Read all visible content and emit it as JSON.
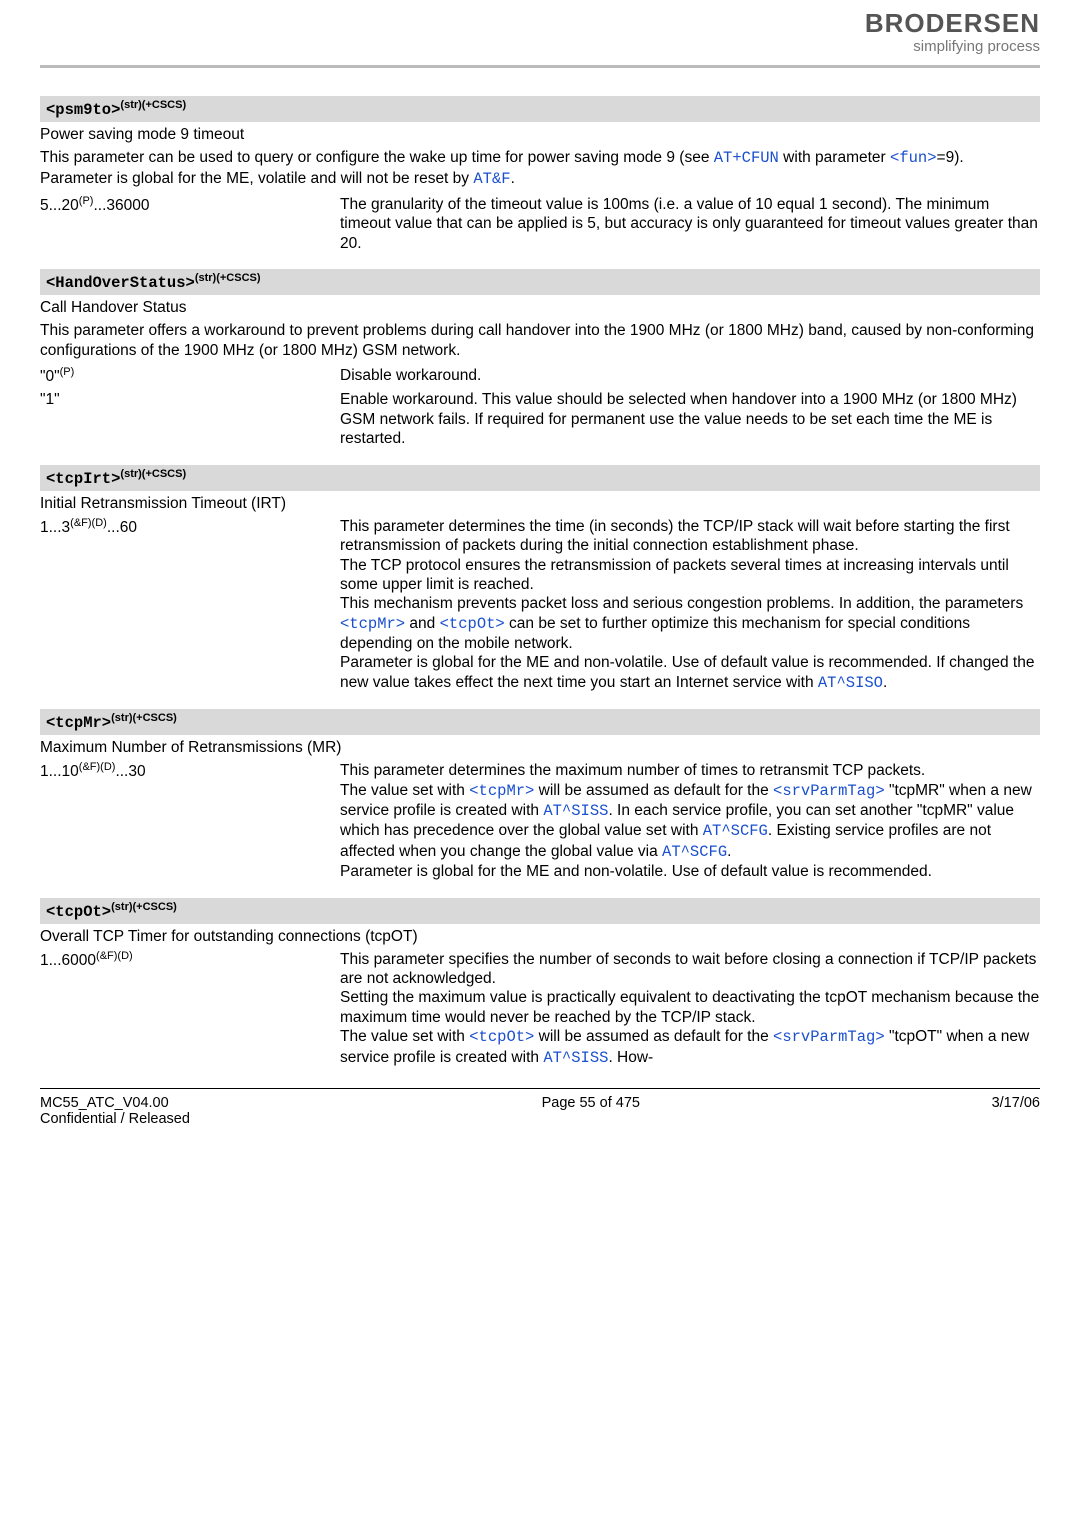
{
  "brand": {
    "name": "BRODERSEN",
    "tagline": "simplifying process"
  },
  "sections": [
    {
      "key": "psm9to",
      "header_html": "&lt;psm9to&gt;<sup>(str)(+CSCS)</sup>",
      "title": "Power saving mode 9 timeout",
      "intro_parts": [
        "This parameter can be used to query or configure the wake up time for power saving mode 9 (see ",
        {
          "at": "AT+CFUN"
        },
        " with parameter ",
        {
          "at": "<fun>"
        },
        "=9).",
        {
          "br": true
        },
        "Parameter is global for the ME, volatile and will not be reset by ",
        {
          "at": "AT&F"
        },
        "."
      ],
      "rows": [
        {
          "key_html": "5...20<sup>(P)</sup>...36000",
          "val": "The granularity of the timeout value is 100ms (i.e. a value of 10 equal 1 second). The minimum timeout value that can be applied is 5, but accuracy is only guaranteed for timeout values greater than 20."
        }
      ]
    },
    {
      "key": "handover",
      "header_html": "&lt;HandOverStatus&gt;<sup>(str)(+CSCS)</sup>",
      "title": "Call Handover Status",
      "intro": "This parameter offers a workaround to prevent problems during call handover into the 1900 MHz (or 1800 MHz) band, caused by non-conforming configurations of the 1900 MHz (or 1800 MHz) GSM network.",
      "rows": [
        {
          "key_html": "\"0\"<sup>(P)</sup>",
          "val": "Disable workaround."
        },
        {
          "key_html": "\"1\"",
          "val": "Enable workaround. This value should be selected when handover into a 1900 MHz (or 1800 MHz) GSM network fails. If required for permanent use the value needs to be set each time the ME is restarted."
        }
      ]
    },
    {
      "key": "tcpIrt",
      "header_html": "&lt;tcpIrt&gt;<sup>(str)(+CSCS)</sup>",
      "title": "Initial Retransmission Timeout (IRT)",
      "rows": [
        {
          "key_html": "1...3<sup>(&amp;F)(D)</sup>...60",
          "val_parts": [
            "This parameter determines the time (in seconds) the TCP/IP stack will wait before starting the first retransmission of packets during the initial connection establishment phase.",
            {
              "br": true
            },
            "The TCP protocol ensures the retransmission of packets several times at increasing intervals until some upper limit is reached.",
            {
              "br": true
            },
            "This mechanism prevents packet loss and serious congestion problems. In addition, the parameters ",
            {
              "at": "<tcpMr>"
            },
            " and ",
            {
              "at": "<tcpOt>"
            },
            " can be set to further optimize this mechanism for special conditions depending on the mobile network.",
            {
              "br": true
            },
            "Parameter is global for the ME and non-volatile. Use of default value is recommended. If changed the new value takes effect the next time you start an Internet service with ",
            {
              "at": "AT^SISO"
            },
            "."
          ]
        }
      ]
    },
    {
      "key": "tcpMr",
      "header_html": "&lt;tcpMr&gt;<sup>(str)(+CSCS)</sup>",
      "title": "Maximum Number of Retransmissions (MR)",
      "rows": [
        {
          "key_html": "1...10<sup>(&amp;F)(D)</sup>...30",
          "val_parts": [
            "This parameter determines the maximum number of times to retransmit TCP packets.",
            {
              "br": true
            },
            "The value set with ",
            {
              "at": "<tcpMr>"
            },
            " will be assumed as default for the ",
            {
              "at": "<srvParmTag>"
            },
            " \"tcpMR\" when a new service profile is created with ",
            {
              "at": "AT^SISS"
            },
            ". In each service profile, you can set another \"tcpMR\" value which has precedence over the global value set with ",
            {
              "at": "AT^SCFG"
            },
            ". Existing service profiles are not affected when you change the global value via ",
            {
              "at": "AT^SCFG"
            },
            ".",
            {
              "br": true
            },
            "Parameter is global for the ME and non-volatile. Use of default value is recommended."
          ]
        }
      ]
    },
    {
      "key": "tcpOt",
      "header_html": "&lt;tcpOt&gt;<sup>(str)(+CSCS)</sup>",
      "title": "Overall TCP Timer for outstanding connections (tcpOT)",
      "rows": [
        {
          "key_html": "1...6000<sup>(&amp;F)(D)</sup>",
          "val_parts": [
            "This parameter specifies the number of seconds to wait before closing a connection if TCP/IP packets are not acknowledged.",
            {
              "br": true
            },
            "Setting the maximum value is practically equivalent to deactivating the tcpOT mechanism because the maximum time would never be reached by the TCP/IP stack.",
            {
              "br": true
            },
            "The value set with ",
            {
              "at": "<tcpOt>"
            },
            " will be assumed as default for the ",
            {
              "at": "<srvParmTag>"
            },
            " \"tcpOT\" when a new service profile is created with ",
            {
              "at": "AT^SISS"
            },
            ". How-"
          ]
        }
      ]
    }
  ],
  "footer": {
    "left1": "MC55_ATC_V04.00",
    "left2": "Confidential / Released",
    "center": "Page 55 of 475",
    "right": "3/17/06"
  }
}
